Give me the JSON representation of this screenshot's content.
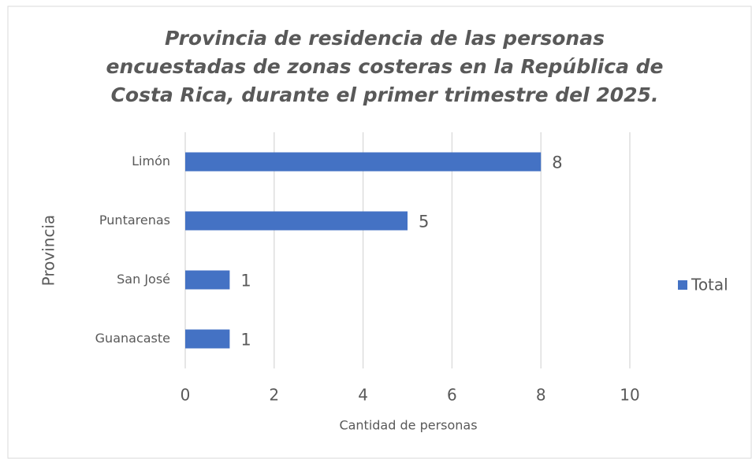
{
  "chart_data": {
    "type": "bar",
    "orientation": "horizontal",
    "title": [
      "Provincia de residencia de las personas",
      "encuestadas de zonas costeras en la República de",
      "Costa Rica, durante el primer trimestre del 2025."
    ],
    "categories": [
      "Limón",
      "Puntarenas",
      "San José",
      "Guanacaste"
    ],
    "series": [
      {
        "name": "Total",
        "color": "#4472c4",
        "values": [
          8,
          5,
          1,
          1
        ]
      }
    ],
    "xlim": [
      0,
      10
    ],
    "xticks": [
      0,
      2,
      4,
      6,
      8,
      10
    ],
    "x_label": "Cantidad de personas",
    "y_label": "Provincia",
    "grid": true,
    "legend": "right"
  }
}
